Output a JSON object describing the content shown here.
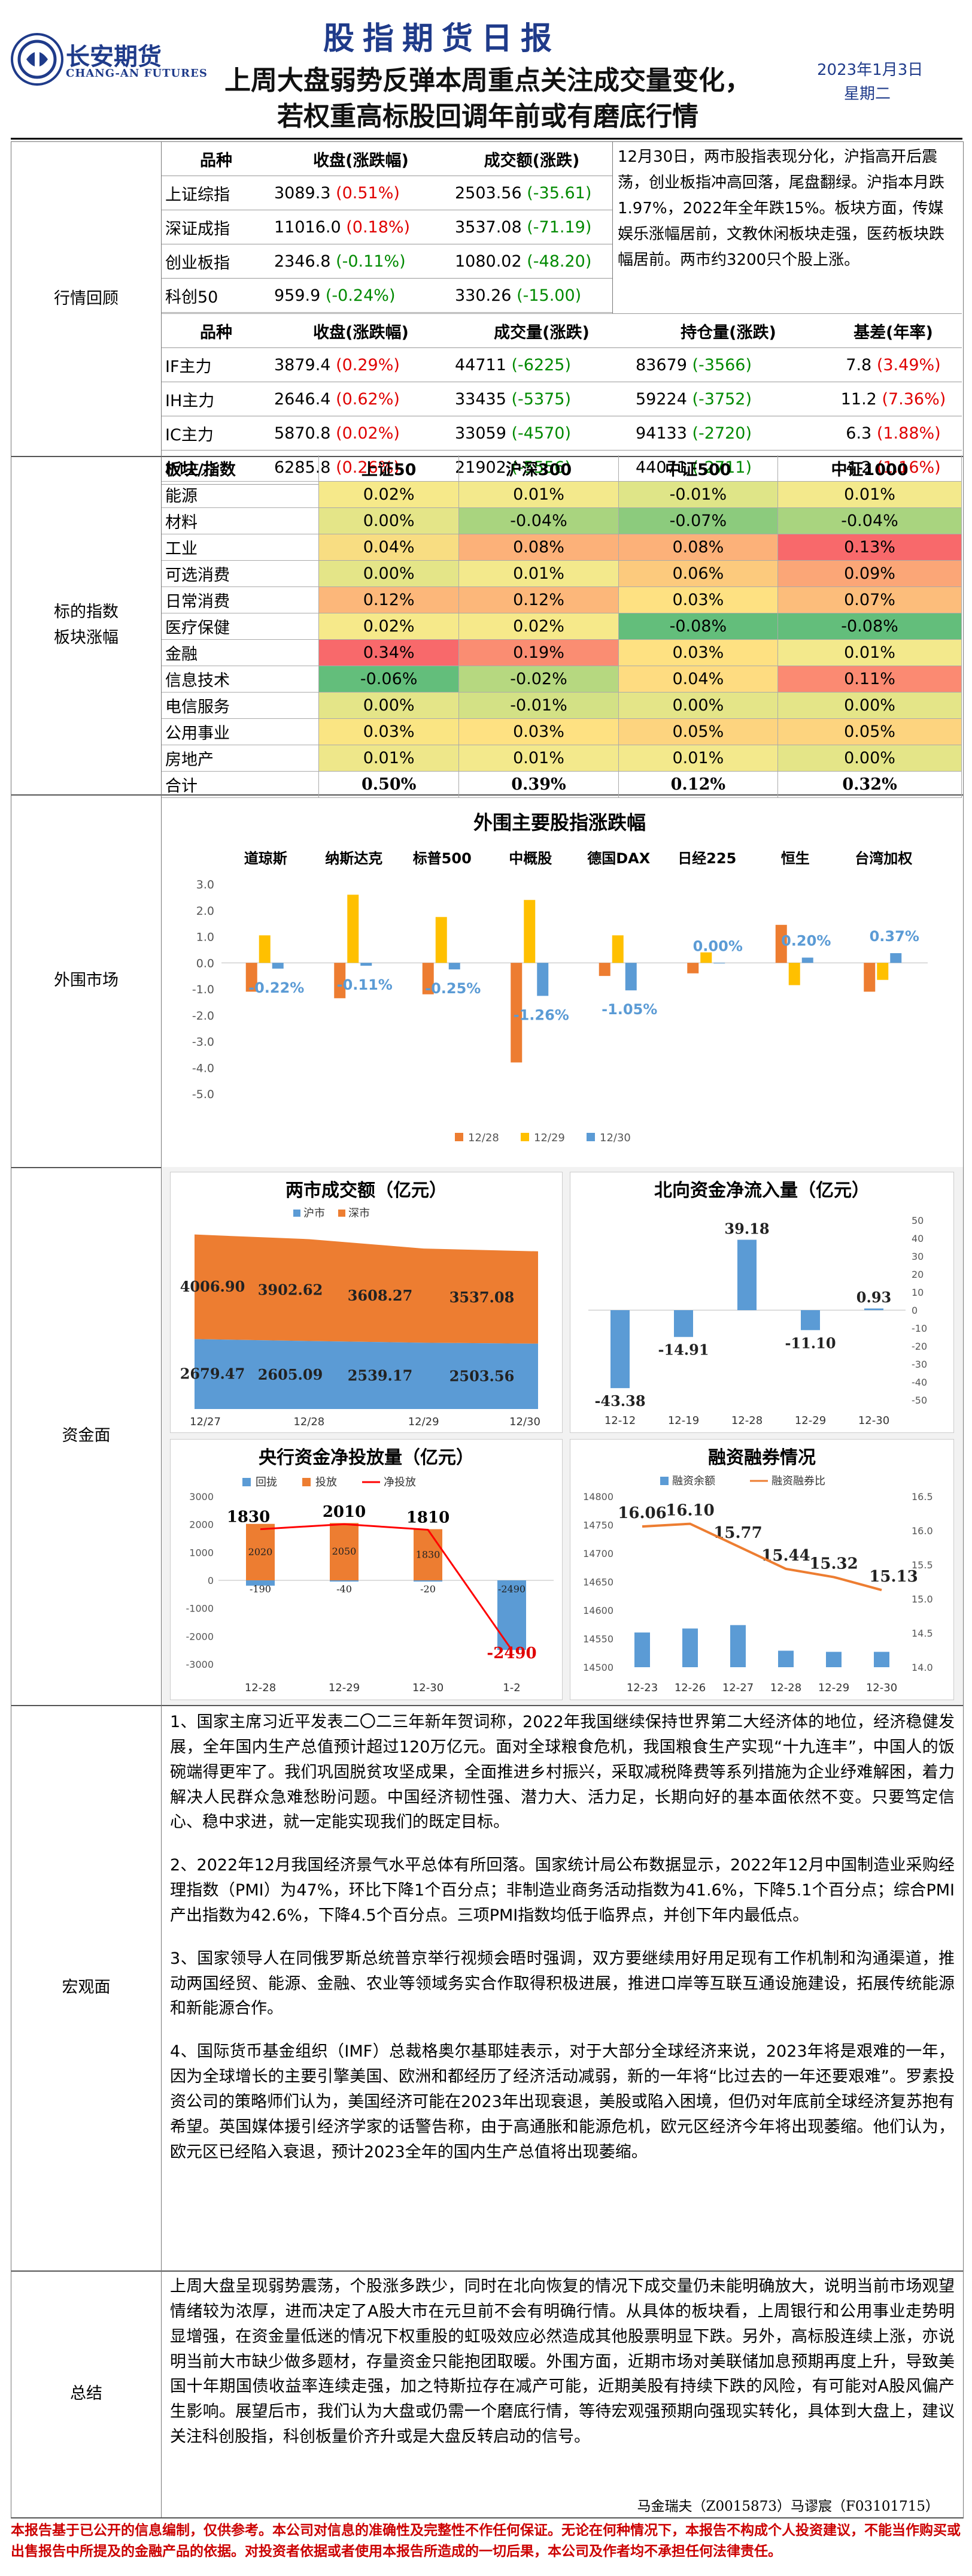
{
  "header": {
    "company_cn": "长安期货",
    "company_en": "CHANG-AN FUTURES",
    "report_title": "股指期货日报",
    "headline_1": "上周大盘弱势反弹本周重点关注成交量变化，",
    "headline_2": "若权重高标股回调年前或有磨底行情",
    "date": "2023年1月3日",
    "weekday": "星期二"
  },
  "colors": {
    "brand": "#1f3b8a",
    "up": "#e00000",
    "down": "#008a00"
  },
  "market": {
    "label": "行情回顾",
    "index_headers": [
      "品种",
      "收盘(涨跌幅)",
      "成交额(涨跌)"
    ],
    "indexes": [
      {
        "name": "上证综指",
        "close": "3089.3",
        "chg": "(0.51%)",
        "chg_dir": "up",
        "amount": "2503.56",
        "amt_chg": "(-35.61)",
        "amt_dir": "down"
      },
      {
        "name": "深证成指",
        "close": "11016.0",
        "chg": "(0.18%)",
        "chg_dir": "up",
        "amount": "3537.08",
        "amt_chg": "(-71.19)",
        "amt_dir": "down"
      },
      {
        "name": "创业板指",
        "close": "2346.8",
        "chg": "(-0.11%)",
        "chg_dir": "down",
        "amount": "1080.02",
        "amt_chg": "(-48.20)",
        "amt_dir": "down"
      },
      {
        "name": "科创50",
        "close": "959.9",
        "chg": "(-0.24%)",
        "chg_dir": "down",
        "amount": "330.26",
        "amt_chg": "(-15.00)",
        "amt_dir": "down"
      }
    ],
    "summary": "12月30日，两市股指表现分化，沪指高开后震荡，创业板指冲高回落，尾盘翻绿。沪指本月跌1.97%，2022年全年跌15%。板块方面，传媒娱乐涨幅居前，文教休闲板块走强，医药板块跌幅居前。两市约3200只个股上涨。",
    "futures_headers": [
      "品种",
      "收盘(涨跌幅)",
      "成交量(涨跌)",
      "持仓量(涨跌)",
      "基差(年率)"
    ],
    "futures": [
      {
        "name": "IF主力",
        "close": "3879.4",
        "chg": "(0.29%)",
        "vol": "44711",
        "vol_chg": "(-6225)",
        "oi": "83679",
        "oi_chg": "(-3566)",
        "basis": "7.8",
        "rate": "(3.49%)"
      },
      {
        "name": "IH主力",
        "close": "2646.4",
        "chg": "(0.62%)",
        "vol": "33435",
        "vol_chg": "(-5375)",
        "oi": "59224",
        "oi_chg": "(-3752)",
        "basis": "11.2",
        "rate": "(7.36%)"
      },
      {
        "name": "IC主力",
        "close": "5870.8",
        "chg": "(0.02%)",
        "vol": "33059",
        "vol_chg": "(-4570)",
        "oi": "94133",
        "oi_chg": "(-2720)",
        "basis": "6.3",
        "rate": "(1.88%)"
      },
      {
        "name": "IM主力",
        "close": "6285.8",
        "chg": "(0.26%)",
        "vol": "21902",
        "vol_chg": "(-5556)",
        "oi": "44071",
        "oi_chg": "(-2711)",
        "basis": "4.2",
        "rate": "(1.16%)"
      }
    ]
  },
  "sector": {
    "label_1": "标的指数",
    "label_2": "板块涨幅",
    "headers": [
      "板块/指数",
      "上证50",
      "沪深300",
      "中证500",
      "中证1000"
    ],
    "rows": [
      {
        "name": "能源",
        "v": [
          "0.02%",
          "0.01%",
          "-0.01%",
          "0.01%"
        ],
        "c": [
          "#f6e98a",
          "#f3e98c",
          "#dfe588",
          "#f3e98c"
        ]
      },
      {
        "name": "材料",
        "v": [
          "0.00%",
          "-0.04%",
          "-0.07%",
          "-0.04%"
        ],
        "c": [
          "#e4e588",
          "#a9d47f",
          "#8ccb7d",
          "#a9d47f"
        ]
      },
      {
        "name": "工业",
        "v": [
          "0.04%",
          "0.08%",
          "0.08%",
          "0.13%"
        ],
        "c": [
          "#f8dd82",
          "#fcb179",
          "#fcb179",
          "#f8696b"
        ]
      },
      {
        "name": "可选消费",
        "v": [
          "0.00%",
          "0.01%",
          "0.06%",
          "0.09%"
        ],
        "c": [
          "#e4e588",
          "#f3e98c",
          "#fcca7d",
          "#fba677"
        ]
      },
      {
        "name": "日常消费",
        "v": [
          "0.12%",
          "0.12%",
          "0.03%",
          "0.07%"
        ],
        "c": [
          "#fcb77a",
          "#fcb77a",
          "#fee182",
          "#fcbd7b"
        ]
      },
      {
        "name": "医疗保健",
        "v": [
          "0.02%",
          "0.02%",
          "-0.08%",
          "-0.08%"
        ],
        "c": [
          "#f6e98a",
          "#f6e98a",
          "#63be7b",
          "#63be7b"
        ]
      },
      {
        "name": "金融",
        "v": [
          "0.34%",
          "0.19%",
          "0.03%",
          "0.01%"
        ],
        "c": [
          "#f8696b",
          "#fa8d72",
          "#fee182",
          "#f3e98c"
        ]
      },
      {
        "name": "信息技术",
        "v": [
          "-0.06%",
          "-0.02%",
          "0.04%",
          "0.11%"
        ],
        "c": [
          "#63be7b",
          "#b6d880",
          "#fedc81",
          "#fb8a72"
        ]
      },
      {
        "name": "电信服务",
        "v": [
          "0.00%",
          "-0.01%",
          "0.00%",
          "0.00%"
        ],
        "c": [
          "#e4e588",
          "#d3e185",
          "#e4e588",
          "#e4e588"
        ]
      },
      {
        "name": "公用事业",
        "v": [
          "0.03%",
          "0.03%",
          "0.05%",
          "0.05%"
        ],
        "c": [
          "#fae583",
          "#fee182",
          "#fdd47f",
          "#fdd47f"
        ]
      },
      {
        "name": "房地产",
        "v": [
          "0.01%",
          "0.01%",
          "0.01%",
          "0.00%"
        ],
        "c": [
          "#eee78a",
          "#f3e98c",
          "#f3e98c",
          "#e4e588"
        ]
      }
    ],
    "total_label": "合计",
    "totals": [
      "0.50%",
      "0.39%",
      "0.12%",
      "0.32%"
    ]
  },
  "overseas": {
    "label": "外围市场",
    "chart_title": "外围主要股指涨跌幅"
  },
  "funds": {
    "label": "资金面",
    "chart1_title": "两市成交额（亿元）",
    "chart2_title": "北向资金净流入量（亿元）",
    "chart3_title": "央行资金净投放量（亿元）",
    "chart4_title": "融资融券情况"
  },
  "macro": {
    "label": "宏观面",
    "paragraphs": [
      "1、国家主席习近平发表二〇二三年新年贺词称，2022年我国继续保持世界第二大经济体的地位，经济稳健发展，全年国内生产总值预计超过120万亿元。面对全球粮食危机，我国粮食生产实现“十九连丰”，中国人的饭碗端得更牢了。我们巩固脱贫攻坚成果，全面推进乡村振兴，采取减税降费等系列措施为企业纾难解困，着力解决人民群众急难愁盼问题。中国经济韧性强、潜力大、活力足，长期向好的基本面依然不变。只要笃定信心、稳中求进，就一定能实现我们的既定目标。",
      "2、2022年12月我国经济景气水平总体有所回落。国家统计局公布数据显示，2022年12月中国制造业采购经理指数（PMI）为47%，环比下降1个百分点；非制造业商务活动指数为41.6%，下降5.1个百分点；综合PMI产出指数为42.6%，下降4.5个百分点。三项PMI指数均低于临界点，并创下年内最低点。",
      "3、国家领导人在同俄罗斯总统普京举行视频会晤时强调，双方要继续用好用足现有工作机制和沟通渠道，推动两国经贸、能源、金融、农业等领域务实合作取得积极进展，推进口岸等互联互通设施建设，拓展传统能源和新能源合作。",
      "4、国际货币基金组织（IMF）总裁格奥尔基耶娃表示，对于大部分全球经济来说，2023年将是艰难的一年，因为全球增长的主要引擎美国、欧洲和都经历了经济活动减弱，新的一年将“比过去的一年还要艰难”。罗素投资公司的策略师们认为，美国经济可能在2023年出现衰退，美股或陷入困境，但仍对年底前全球经济复苏抱有希望。英国媒体援引经济学家的话警告称，由于高通胀和能源危机，欧元区经济今年将出现萎缩。他们认为，欧元区已经陷入衰退，预计2023全年的国内生产总值将出现萎缩。"
    ]
  },
  "conclusion": {
    "label": "总结",
    "text": "上周大盘呈现弱势震荡，个股涨多跌少，同时在北向恢复的情况下成交量仍未能明确放大，说明当前市场观望情绪较为浓厚，进而决定了A股大市在元旦前不会有明确行情。从具体的板块看，上周银行和公用事业走势明显增强，在资金量低迷的情况下权重股的虹吸效应必然造成其他股票明显下跌。另外，高标股连续上涨，亦说明当前大市缺少做多题材，存量资金只能抱团取暖。外围方面，近期市场对美联储加息预期再度上升，导致美国十年期国债收益率连续走强，加之特斯拉存在减产可能，近期美股有持续下跌的风险，有可能对A股风偏产生影响。展望后市，我们认为大盘或仍需一个磨底行情，等待宏观强预期向强现实转化，具体到大盘上，建议关注科创股指，科创板量价齐升或是大盘反转启动的信号。",
    "authors": "马金瑞夫（Z0015873）马谬宸（F03101715）"
  },
  "footer": {
    "disclaimer": "本报告基于已公开的信息编制，仅供参考。本公司对信息的准确性及完整性不作任何保证。无论在何种情况下，本报告不构成个人投资建议，不能当作购买或出售报告中所提及的金融产品的依据。对投资者依据或者使用本报告所造成的一切后果，本公司及作者均不承担任何法律责任。"
  },
  "chart_data": [
    {
      "type": "bar",
      "title": "外围主要股指涨跌幅",
      "categories": [
        "道琼斯",
        "纳斯达克",
        "标普500",
        "中概股",
        "德国DAX",
        "日经225",
        "恒生",
        "台湾加权"
      ],
      "series": [
        {
          "name": "12/28",
          "values": [
            -1.1,
            -1.35,
            -1.2,
            -3.8,
            -0.5,
            -0.4,
            1.45,
            -1.1
          ]
        },
        {
          "name": "12/29",
          "values": [
            1.05,
            2.6,
            1.75,
            2.4,
            1.05,
            0.4,
            -0.85,
            -0.65
          ]
        },
        {
          "name": "12/30",
          "values": [
            -0.22,
            -0.11,
            -0.25,
            -1.26,
            -1.05,
            0.0,
            0.2,
            0.37
          ]
        }
      ],
      "data_labels": [
        "-0.22%",
        "-0.11%",
        "-0.25%",
        "-1.26%",
        "-1.05%",
        "0.00%",
        "0.20%",
        "0.37%"
      ],
      "ylim": [
        -5.0,
        3.0
      ],
      "yticks": [
        "-5.0",
        "-4.0",
        "-3.0",
        "-2.0",
        "-1.0",
        "0.0",
        "1.0",
        "2.0",
        "3.0"
      ],
      "legend": "bottom",
      "colors": [
        "#ed7d31",
        "#ffc000",
        "#5b9bd5"
      ]
    },
    {
      "type": "area",
      "title": "两市成交额（亿元）",
      "categories": [
        "12/27",
        "12/28",
        "12/29",
        "12/30"
      ],
      "series": [
        {
          "name": "沪市",
          "values": [
            2679.47,
            2605.09,
            2539.17,
            2503.56
          ]
        },
        {
          "name": "深市",
          "values": [
            4006.9,
            3902.62,
            3608.27,
            3537.08
          ]
        }
      ],
      "colors": [
        "#5b9bd5",
        "#ed7d31"
      ]
    },
    {
      "type": "bar",
      "title": "北向资金净流入量（亿元）",
      "categories": [
        "12-12",
        "12-19",
        "12-28",
        "12-29",
        "12-30"
      ],
      "values": [
        -43.38,
        -14.91,
        39.18,
        -11.1,
        0.93
      ],
      "ylim": [
        -50,
        50
      ],
      "yticks": [
        "-50",
        "-40",
        "-30",
        "-20",
        "-10",
        "0",
        "10",
        "20",
        "30",
        "40",
        "50"
      ],
      "color": "#5b9bd5"
    },
    {
      "type": "bar",
      "title": "央行资金净投放量（亿元）",
      "categories": [
        "12-28",
        "12-29",
        "12-30",
        "1-2"
      ],
      "series": [
        {
          "name": "回拢",
          "values": [
            -190,
            -40,
            -20,
            -2490
          ]
        },
        {
          "name": "投放",
          "values": [
            2020,
            2050,
            1830,
            0
          ]
        },
        {
          "name": "净投放",
          "values": [
            1830,
            2010,
            1810,
            -2490
          ]
        }
      ],
      "value_labels": {
        "回拢": [
          "-190",
          "-40",
          "-20",
          "-2490"
        ],
        "投放": [
          "2020",
          "2050",
          "1830",
          ""
        ],
        "净投放": [
          "1830",
          "2010",
          "1810",
          "-2490"
        ]
      },
      "ylim": [
        -3000,
        3000
      ],
      "yticks": [
        "-3000",
        "-2000",
        "-1000",
        "0",
        "1000",
        "2000",
        "3000"
      ],
      "colors": [
        "#5b9bd5",
        "#ed7d31",
        "#ff0000"
      ]
    },
    {
      "type": "bar",
      "title": "融资融券情况",
      "categories": [
        "12-23",
        "12-26",
        "12-27",
        "12-28",
        "12-29",
        "12-30"
      ],
      "series": [
        {
          "name": "融资余额",
          "values": [
            14561,
            14568,
            14574,
            14529,
            14527,
            14527
          ]
        },
        {
          "name": "融资融券比",
          "values": [
            16.06,
            16.1,
            15.77,
            15.44,
            15.32,
            15.13
          ]
        }
      ],
      "line_labels": [
        "16.06",
        "16.10",
        "15.77",
        "15.44",
        "15.32",
        "15.13"
      ],
      "ylim": [
        14500,
        14800
      ],
      "yticks": [
        "14500",
        "14550",
        "14600",
        "14650",
        "14700",
        "14750",
        "14800"
      ],
      "y2lim": [
        14.0,
        16.5
      ],
      "y2ticks": [
        "14.0",
        "14.5",
        "15.0",
        "15.5",
        "16.0",
        "16.5"
      ],
      "colors": [
        "#5b9bd5",
        "#ed7d31"
      ]
    }
  ]
}
